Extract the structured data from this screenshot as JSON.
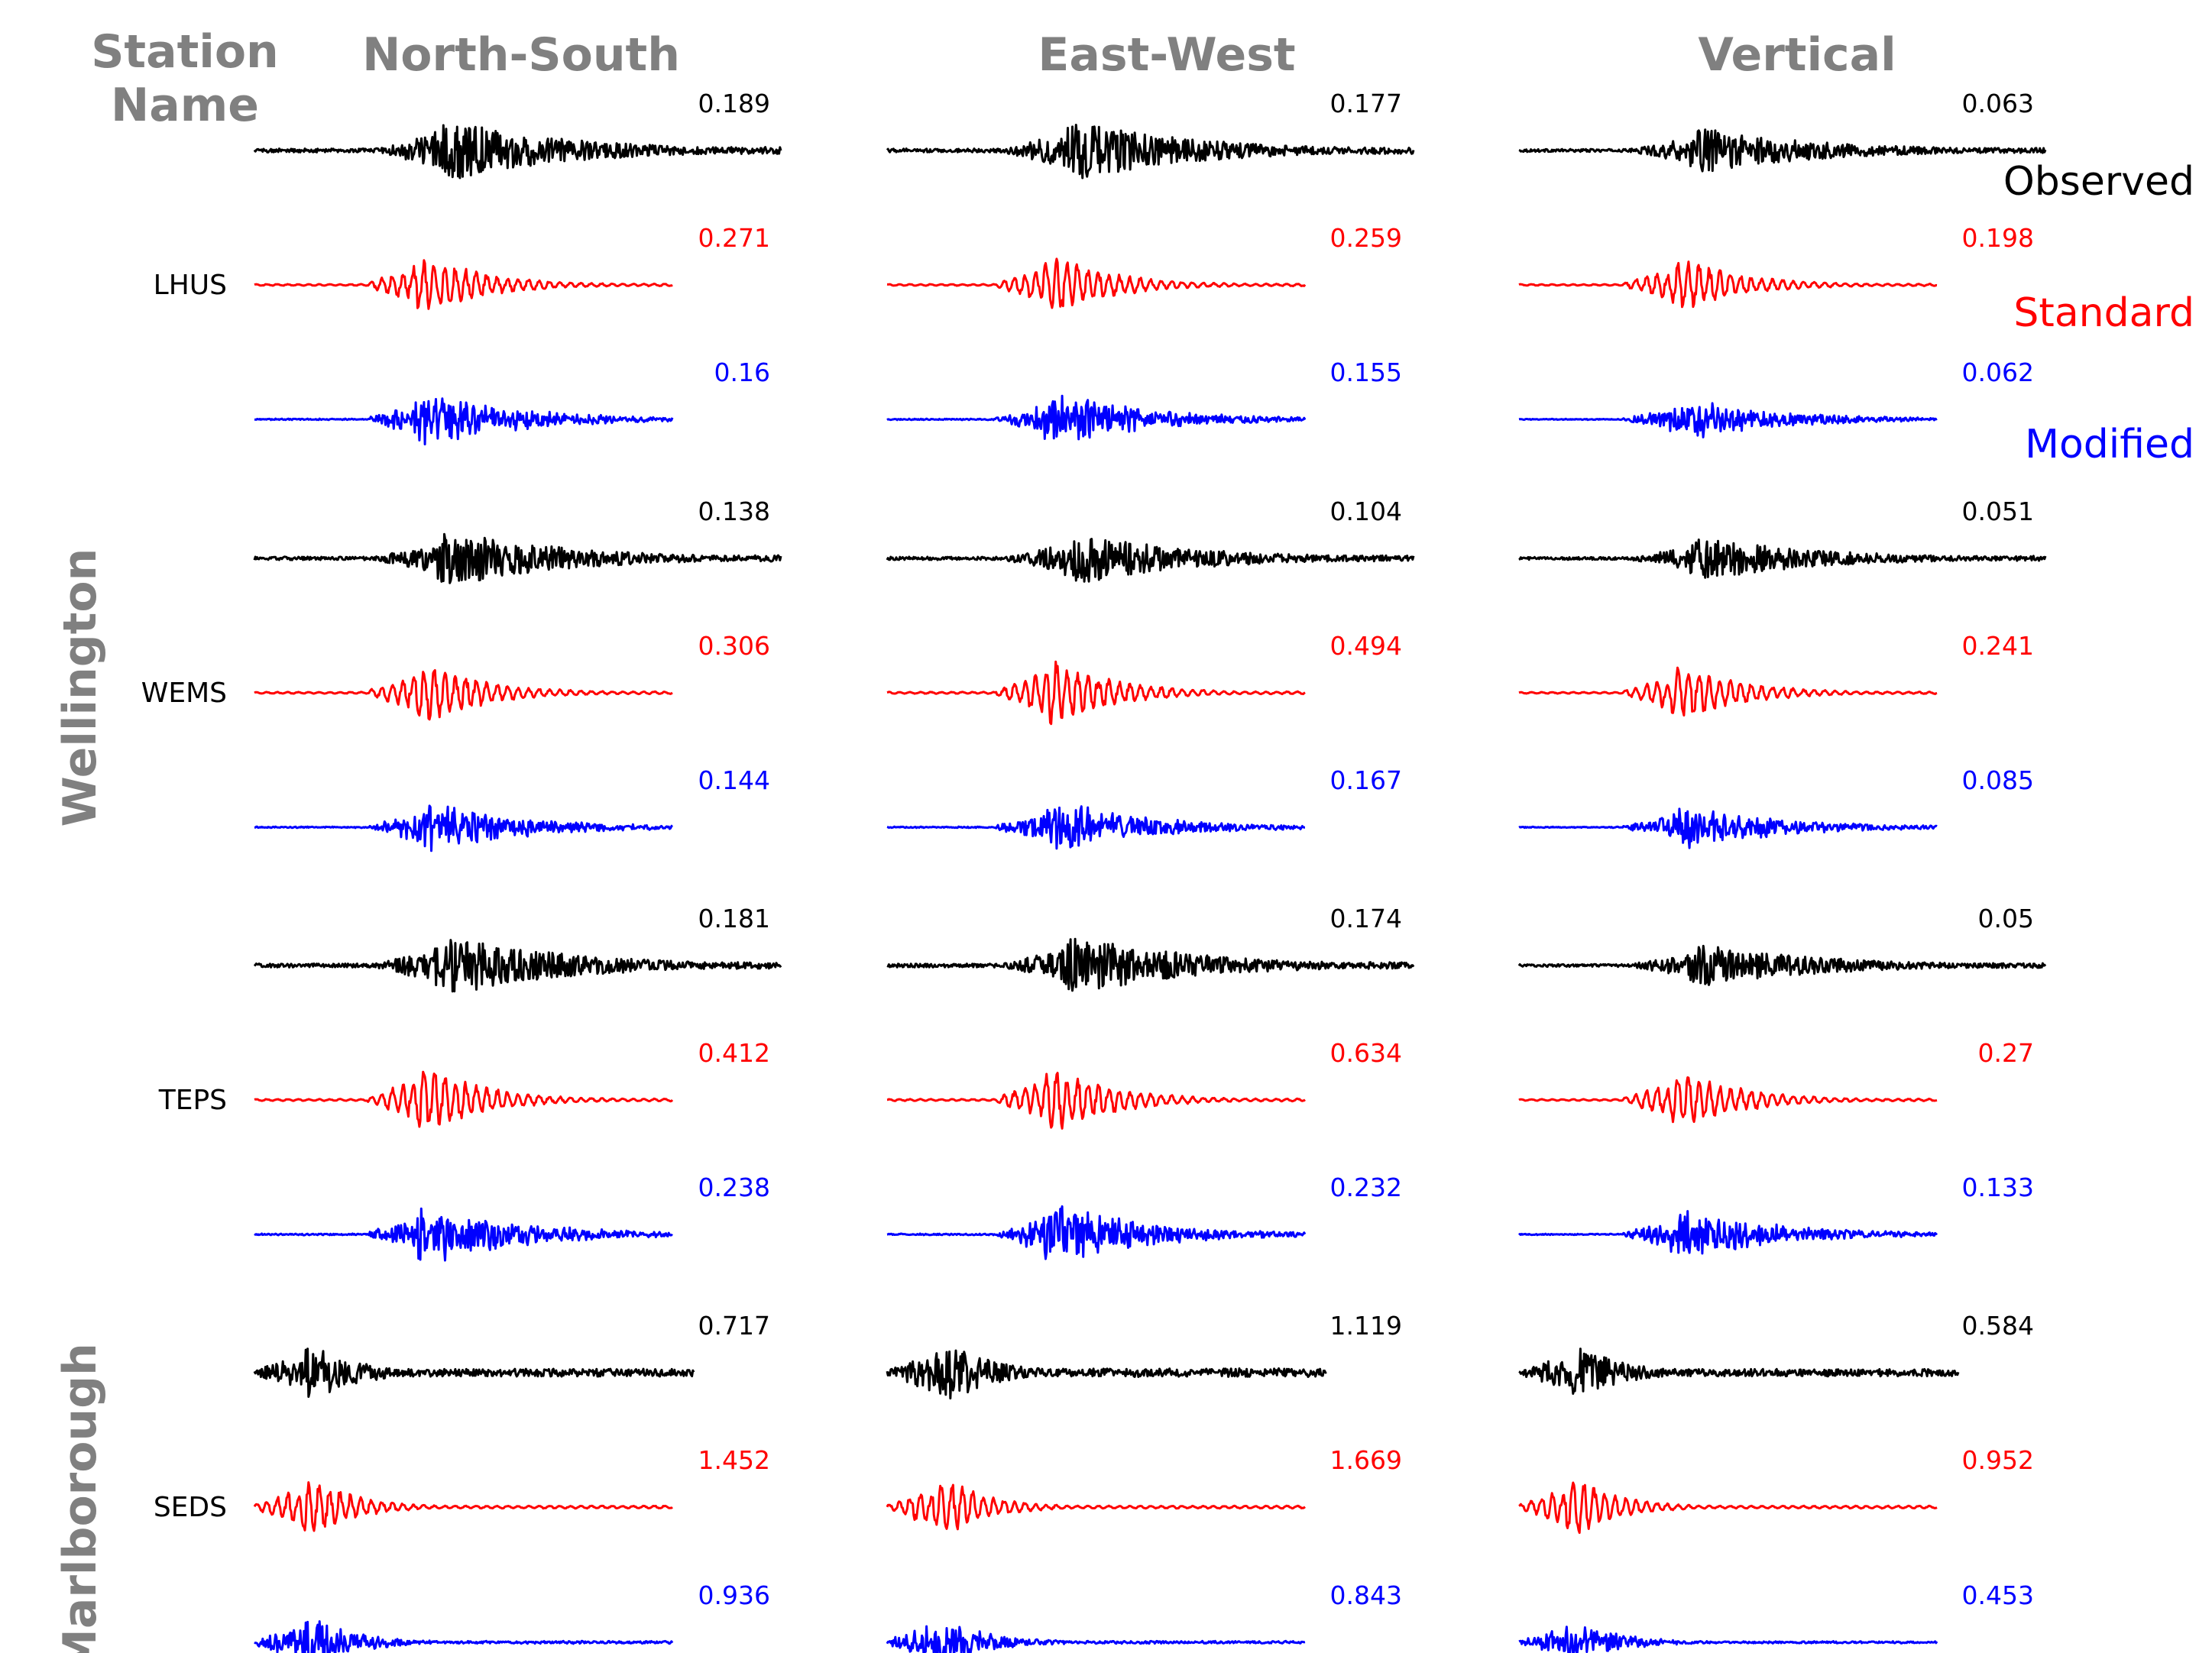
{
  "header": {
    "station_title_line1": "Station",
    "station_title_line2": "Name"
  },
  "colors": {
    "observed": "#000000",
    "standard": "#ff0000",
    "modified": "#0000ff",
    "title_gray": "#808080"
  },
  "legend": [
    "Observed",
    "Standard",
    "Modified"
  ],
  "chart_data": {
    "type": "line",
    "description_kind": "seismogram panel grid",
    "components": [
      "North-South",
      "East-West",
      "Vertical"
    ],
    "regions": [
      {
        "name": "Wellington",
        "stations": [
          "LHUS",
          "WEMS",
          "TEPS"
        ]
      },
      {
        "name": "Marlborough",
        "stations": [
          "SEDS"
        ]
      }
    ],
    "series": [
      "Observed",
      "Standard",
      "Modified"
    ],
    "stations": [
      {
        "name": "LHUS",
        "peaks": {
          "Observed": [
            "0.189",
            "0.177",
            "0.063"
          ],
          "Standard": [
            "0.271",
            "0.259",
            "0.198"
          ],
          "Modified": [
            "0.16",
            "0.155",
            "0.062"
          ]
        }
      },
      {
        "name": "WEMS",
        "peaks": {
          "Observed": [
            "0.138",
            "0.104",
            "0.051"
          ],
          "Standard": [
            "0.306",
            "0.494",
            "0.241"
          ],
          "Modified": [
            "0.144",
            "0.167",
            "0.085"
          ]
        }
      },
      {
        "name": "TEPS",
        "peaks": {
          "Observed": [
            "0.181",
            "0.174",
            "0.05"
          ],
          "Standard": [
            "0.412",
            "0.634",
            "0.27"
          ],
          "Modified": [
            "0.238",
            "0.232",
            "0.133"
          ]
        }
      },
      {
        "name": "SEDS",
        "peaks": {
          "Observed": [
            "0.717",
            "1.119",
            "0.584"
          ],
          "Standard": [
            "1.452",
            "1.669",
            "0.952"
          ],
          "Modified": [
            "0.936",
            "0.843",
            "0.453"
          ]
        }
      }
    ]
  }
}
